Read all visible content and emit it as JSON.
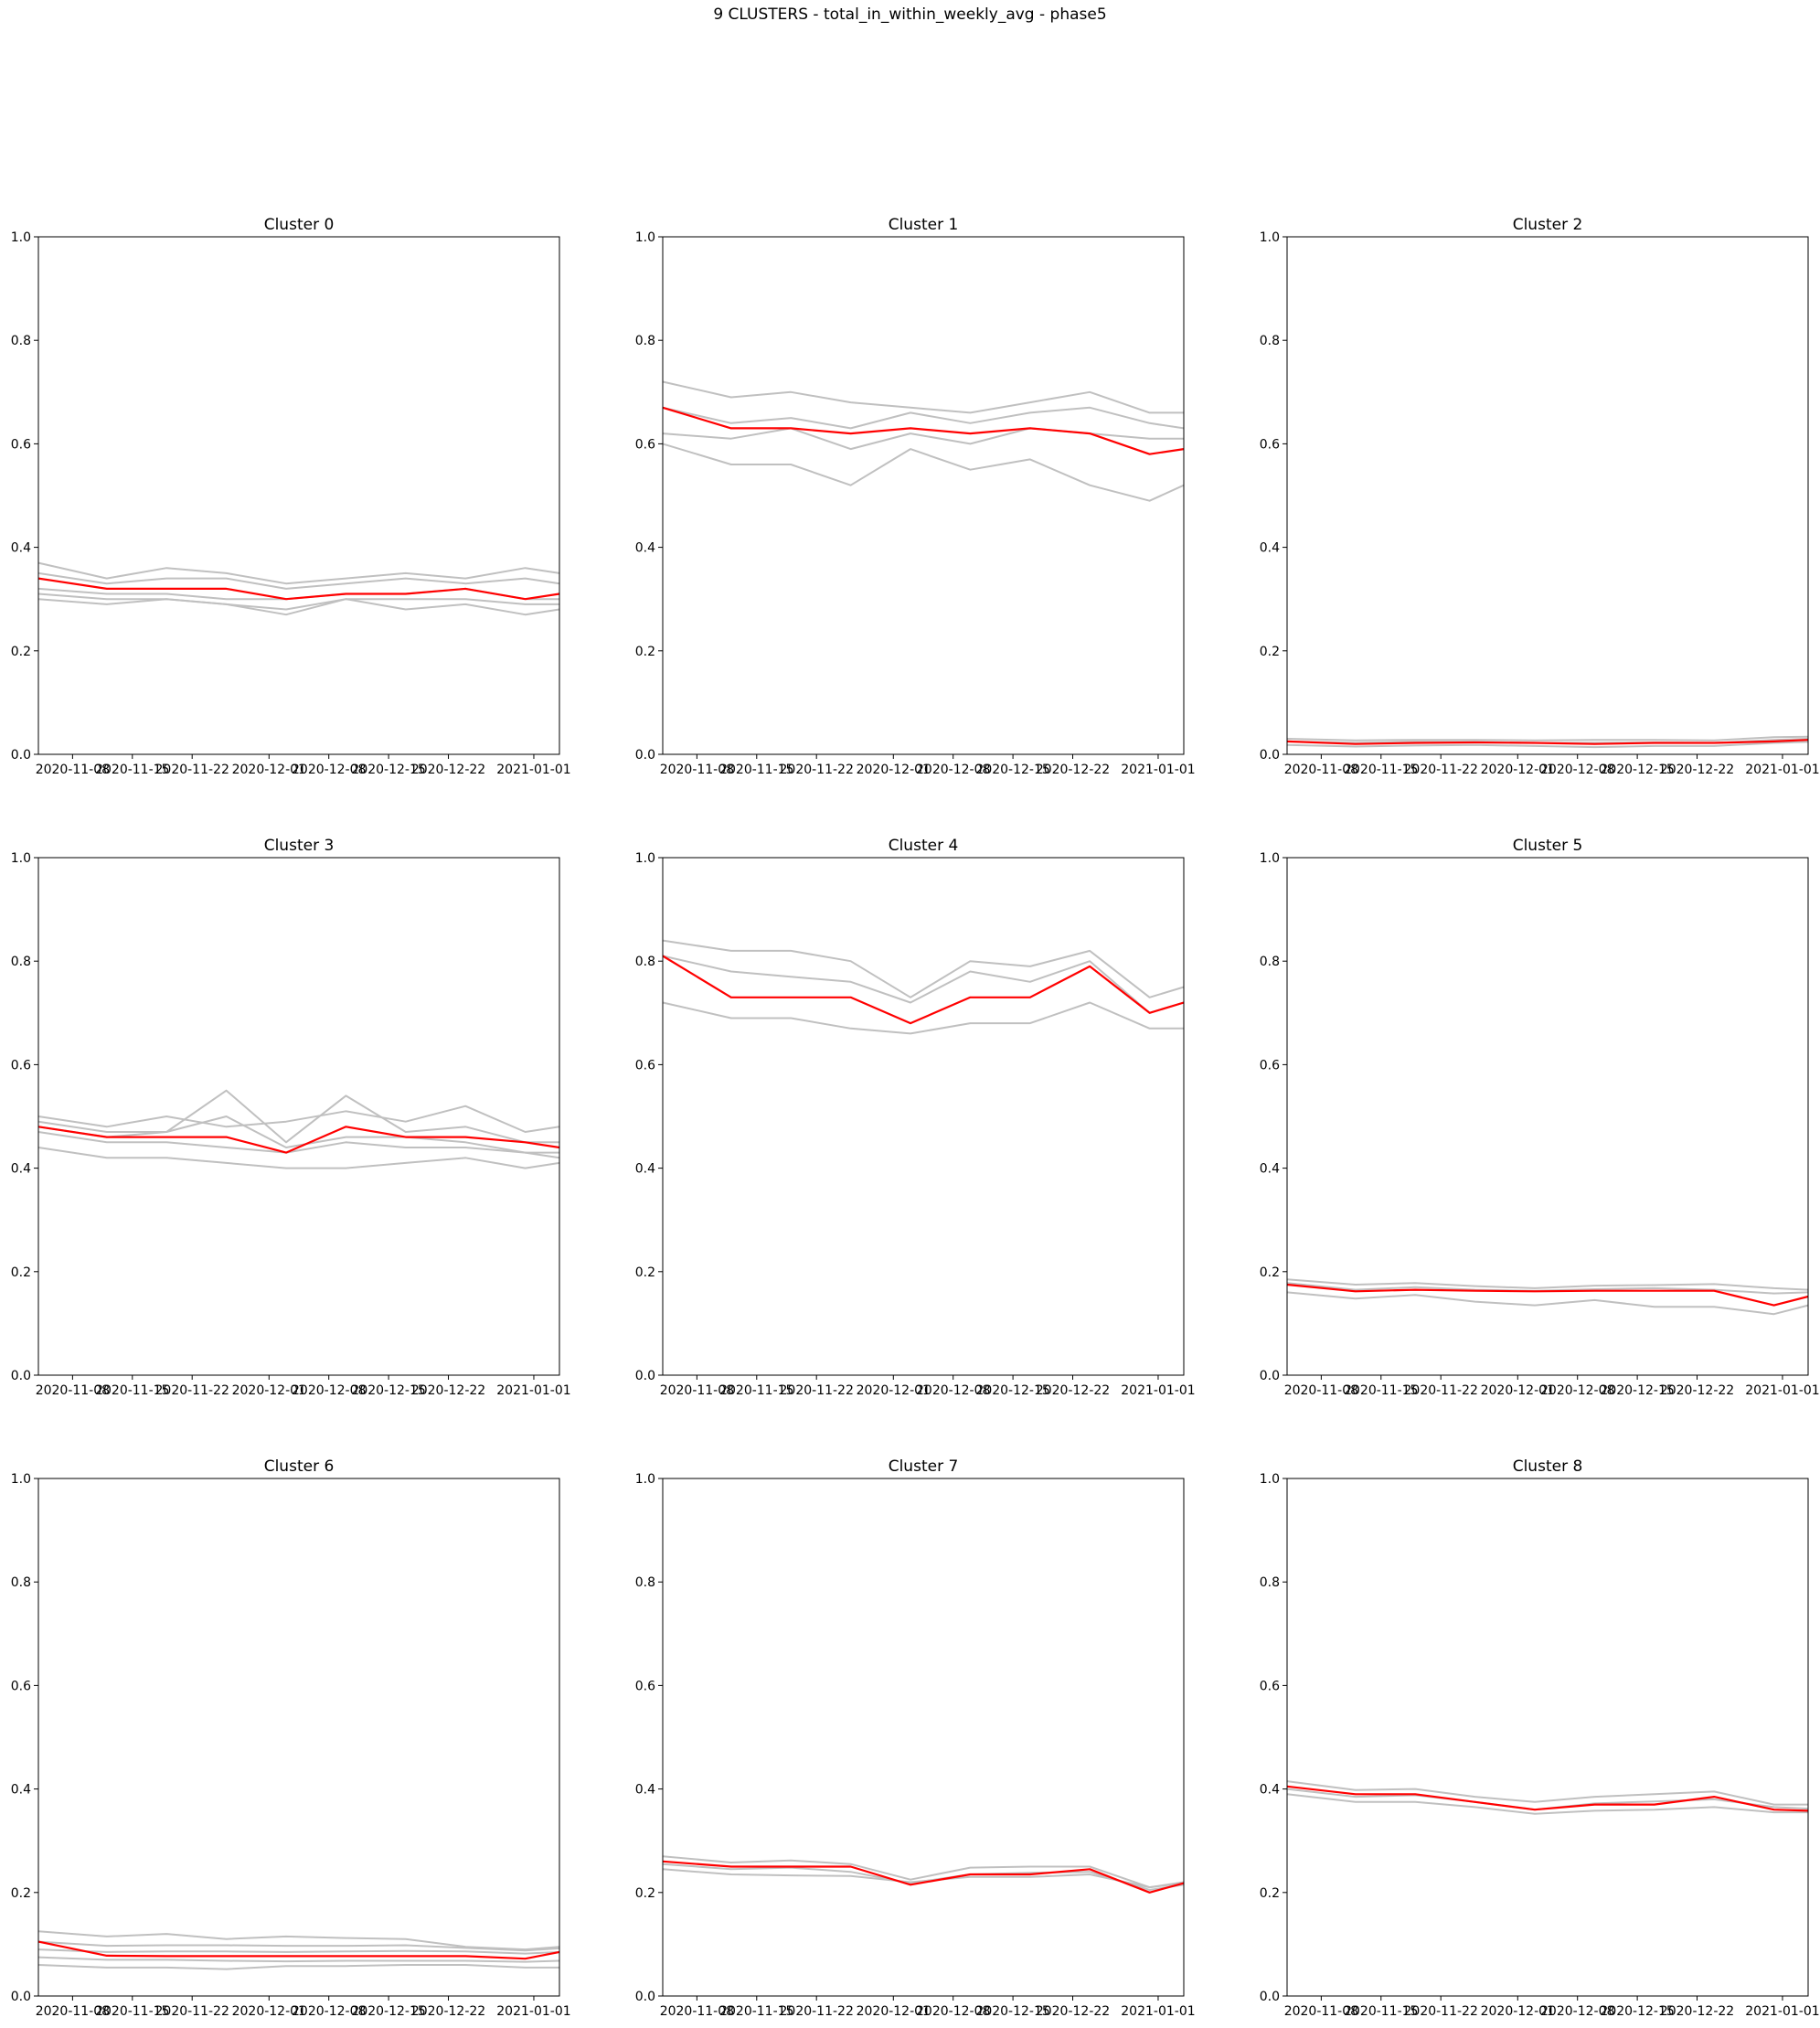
{
  "figure": {
    "title": "9 CLUSTERS - total_in_within_weekly_avg - phase5"
  },
  "colors": {
    "member": "#c0c0c0",
    "centroid": "#ff0000"
  },
  "chart_data": [
    {
      "type": "line",
      "title": "Cluster 0",
      "ylim": [
        0,
        1
      ],
      "xlim": [
        "2020-11-04",
        "2021-01-04"
      ],
      "xticks": [
        "2020-11-08",
        "2020-11-15",
        "2020-11-22",
        "2020-12-01",
        "2020-12-08",
        "2020-12-15",
        "2020-12-22",
        "2021-01-01"
      ],
      "yticks": [
        "0.0",
        "0.2",
        "0.4",
        "0.6",
        "0.8",
        "1.0"
      ],
      "x": [
        "2020-11-04",
        "2020-11-12",
        "2020-11-19",
        "2020-11-26",
        "2020-12-03",
        "2020-12-10",
        "2020-12-17",
        "2020-12-24",
        "2020-12-31",
        "2021-01-04"
      ],
      "series": [
        {
          "role": "member",
          "values": [
            0.37,
            0.34,
            0.36,
            0.35,
            0.33,
            0.34,
            0.35,
            0.34,
            0.36,
            0.35
          ]
        },
        {
          "role": "member",
          "values": [
            0.35,
            0.33,
            0.34,
            0.34,
            0.32,
            0.33,
            0.34,
            0.33,
            0.34,
            0.33
          ]
        },
        {
          "role": "member",
          "values": [
            0.32,
            0.31,
            0.31,
            0.3,
            0.3,
            0.31,
            0.31,
            0.32,
            0.3,
            0.3
          ]
        },
        {
          "role": "member",
          "values": [
            0.31,
            0.3,
            0.3,
            0.29,
            0.28,
            0.3,
            0.3,
            0.3,
            0.29,
            0.29
          ]
        },
        {
          "role": "member",
          "values": [
            0.3,
            0.29,
            0.3,
            0.29,
            0.27,
            0.3,
            0.28,
            0.29,
            0.27,
            0.28
          ]
        },
        {
          "role": "centroid",
          "values": [
            0.34,
            0.32,
            0.32,
            0.32,
            0.3,
            0.31,
            0.31,
            0.32,
            0.3,
            0.31
          ]
        }
      ]
    },
    {
      "type": "line",
      "title": "Cluster 1",
      "ylim": [
        0,
        1
      ],
      "xlim": [
        "2020-11-04",
        "2021-01-04"
      ],
      "xticks": [
        "2020-11-08",
        "2020-11-15",
        "2020-11-22",
        "2020-12-01",
        "2020-12-08",
        "2020-12-15",
        "2020-12-22",
        "2021-01-01"
      ],
      "yticks": [
        "0.0",
        "0.2",
        "0.4",
        "0.6",
        "0.8",
        "1.0"
      ],
      "x": [
        "2020-11-04",
        "2020-11-12",
        "2020-11-19",
        "2020-11-26",
        "2020-12-03",
        "2020-12-10",
        "2020-12-17",
        "2020-12-24",
        "2020-12-31",
        "2021-01-04"
      ],
      "series": [
        {
          "role": "member",
          "values": [
            0.72,
            0.69,
            0.7,
            0.68,
            0.67,
            0.66,
            0.68,
            0.7,
            0.66,
            0.66
          ]
        },
        {
          "role": "member",
          "values": [
            0.67,
            0.64,
            0.65,
            0.63,
            0.66,
            0.64,
            0.66,
            0.67,
            0.64,
            0.63
          ]
        },
        {
          "role": "member",
          "values": [
            0.62,
            0.61,
            0.63,
            0.59,
            0.62,
            0.6,
            0.63,
            0.62,
            0.61,
            0.61
          ]
        },
        {
          "role": "member",
          "values": [
            0.6,
            0.56,
            0.56,
            0.52,
            0.59,
            0.55,
            0.57,
            0.52,
            0.49,
            0.52
          ]
        },
        {
          "role": "centroid",
          "values": [
            0.67,
            0.63,
            0.63,
            0.62,
            0.63,
            0.62,
            0.63,
            0.62,
            0.58,
            0.59
          ]
        }
      ]
    },
    {
      "type": "line",
      "title": "Cluster 2",
      "ylim": [
        0,
        1
      ],
      "xlim": [
        "2020-11-04",
        "2021-01-04"
      ],
      "xticks": [
        "2020-11-08",
        "2020-11-15",
        "2020-11-22",
        "2020-12-01",
        "2020-12-08",
        "2020-12-15",
        "2020-12-22",
        "2021-01-01"
      ],
      "yticks": [
        "0.0",
        "0.2",
        "0.4",
        "0.6",
        "0.8",
        "1.0"
      ],
      "x": [
        "2020-11-04",
        "2020-11-12",
        "2020-11-19",
        "2020-11-26",
        "2020-12-03",
        "2020-12-10",
        "2020-12-17",
        "2020-12-24",
        "2020-12-31",
        "2021-01-04"
      ],
      "series": [
        {
          "role": "member",
          "values": [
            0.03,
            0.027,
            0.028,
            0.028,
            0.027,
            0.028,
            0.028,
            0.027,
            0.033,
            0.034
          ]
        },
        {
          "role": "member",
          "values": [
            0.025,
            0.022,
            0.024,
            0.024,
            0.022,
            0.022,
            0.023,
            0.022,
            0.028,
            0.03
          ]
        },
        {
          "role": "member",
          "values": [
            0.018,
            0.015,
            0.017,
            0.018,
            0.016,
            0.014,
            0.016,
            0.016,
            0.022,
            0.024
          ]
        },
        {
          "role": "centroid",
          "values": [
            0.025,
            0.02,
            0.022,
            0.023,
            0.022,
            0.02,
            0.022,
            0.022,
            0.025,
            0.028
          ]
        }
      ]
    },
    {
      "type": "line",
      "title": "Cluster 3",
      "ylim": [
        0,
        1
      ],
      "xlim": [
        "2020-11-04",
        "2021-01-04"
      ],
      "xticks": [
        "2020-11-08",
        "2020-11-15",
        "2020-11-22",
        "2020-12-01",
        "2020-12-08",
        "2020-12-15",
        "2020-12-22",
        "2021-01-01"
      ],
      "yticks": [
        "0.0",
        "0.2",
        "0.4",
        "0.6",
        "0.8",
        "1.0"
      ],
      "x": [
        "2020-11-04",
        "2020-11-12",
        "2020-11-19",
        "2020-11-26",
        "2020-12-03",
        "2020-12-10",
        "2020-12-17",
        "2020-12-24",
        "2020-12-31",
        "2021-01-04"
      ],
      "series": [
        {
          "role": "member",
          "values": [
            0.5,
            0.48,
            0.5,
            0.48,
            0.49,
            0.51,
            0.49,
            0.52,
            0.47,
            0.48
          ]
        },
        {
          "role": "member",
          "values": [
            0.49,
            0.47,
            0.47,
            0.55,
            0.45,
            0.54,
            0.47,
            0.48,
            0.45,
            0.45
          ]
        },
        {
          "role": "member",
          "values": [
            0.48,
            0.46,
            0.47,
            0.5,
            0.44,
            0.46,
            0.46,
            0.45,
            0.43,
            0.43
          ]
        },
        {
          "role": "member",
          "values": [
            0.47,
            0.45,
            0.45,
            0.44,
            0.43,
            0.45,
            0.44,
            0.44,
            0.43,
            0.42
          ]
        },
        {
          "role": "member",
          "values": [
            0.44,
            0.42,
            0.42,
            0.41,
            0.4,
            0.4,
            0.41,
            0.42,
            0.4,
            0.41
          ]
        },
        {
          "role": "centroid",
          "values": [
            0.48,
            0.46,
            0.46,
            0.46,
            0.43,
            0.48,
            0.46,
            0.46,
            0.45,
            0.44
          ]
        }
      ]
    },
    {
      "type": "line",
      "title": "Cluster 4",
      "ylim": [
        0,
        1
      ],
      "xlim": [
        "2020-11-04",
        "2021-01-04"
      ],
      "xticks": [
        "2020-11-08",
        "2020-11-15",
        "2020-11-22",
        "2020-12-01",
        "2020-12-08",
        "2020-12-15",
        "2020-12-22",
        "2021-01-01"
      ],
      "yticks": [
        "0.0",
        "0.2",
        "0.4",
        "0.6",
        "0.8",
        "1.0"
      ],
      "x": [
        "2020-11-04",
        "2020-11-12",
        "2020-11-19",
        "2020-11-26",
        "2020-12-03",
        "2020-12-10",
        "2020-12-17",
        "2020-12-24",
        "2020-12-31",
        "2021-01-04"
      ],
      "series": [
        {
          "role": "member",
          "values": [
            0.84,
            0.82,
            0.82,
            0.8,
            0.73,
            0.8,
            0.79,
            0.82,
            0.73,
            0.75
          ]
        },
        {
          "role": "member",
          "values": [
            0.81,
            0.78,
            0.77,
            0.76,
            0.72,
            0.78,
            0.76,
            0.8,
            0.7,
            0.72
          ]
        },
        {
          "role": "member",
          "values": [
            0.72,
            0.69,
            0.69,
            0.67,
            0.66,
            0.68,
            0.68,
            0.72,
            0.67,
            0.67
          ]
        },
        {
          "role": "centroid",
          "values": [
            0.81,
            0.73,
            0.73,
            0.73,
            0.68,
            0.73,
            0.73,
            0.79,
            0.7,
            0.72
          ]
        }
      ]
    },
    {
      "type": "line",
      "title": "Cluster 5",
      "ylim": [
        0,
        1
      ],
      "xlim": [
        "2020-11-04",
        "2021-01-04"
      ],
      "xticks": [
        "2020-11-08",
        "2020-11-15",
        "2020-11-22",
        "2020-12-01",
        "2020-12-08",
        "2020-12-15",
        "2020-12-22",
        "2021-01-01"
      ],
      "yticks": [
        "0.0",
        "0.2",
        "0.4",
        "0.6",
        "0.8",
        "1.0"
      ],
      "x": [
        "2020-11-04",
        "2020-11-12",
        "2020-11-19",
        "2020-11-26",
        "2020-12-03",
        "2020-12-10",
        "2020-12-17",
        "2020-12-24",
        "2020-12-31",
        "2021-01-04"
      ],
      "series": [
        {
          "role": "member",
          "values": [
            0.185,
            0.175,
            0.178,
            0.172,
            0.168,
            0.173,
            0.174,
            0.176,
            0.168,
            0.165
          ]
        },
        {
          "role": "member",
          "values": [
            0.178,
            0.165,
            0.17,
            0.165,
            0.163,
            0.166,
            0.168,
            0.165,
            0.158,
            0.16
          ]
        },
        {
          "role": "member",
          "values": [
            0.16,
            0.148,
            0.155,
            0.142,
            0.135,
            0.145,
            0.132,
            0.132,
            0.118,
            0.135
          ]
        },
        {
          "role": "centroid",
          "values": [
            0.175,
            0.162,
            0.165,
            0.163,
            0.162,
            0.163,
            0.163,
            0.163,
            0.135,
            0.152
          ]
        }
      ]
    },
    {
      "type": "line",
      "title": "Cluster 6",
      "ylim": [
        0,
        1
      ],
      "xlim": [
        "2020-11-04",
        "2021-01-04"
      ],
      "xticks": [
        "2020-11-08",
        "2020-11-15",
        "2020-11-22",
        "2020-12-01",
        "2020-12-08",
        "2020-12-15",
        "2020-12-22",
        "2021-01-01"
      ],
      "yticks": [
        "0.0",
        "0.2",
        "0.4",
        "0.6",
        "0.8",
        "1.0"
      ],
      "x": [
        "2020-11-04",
        "2020-11-12",
        "2020-11-19",
        "2020-11-26",
        "2020-12-03",
        "2020-12-10",
        "2020-12-17",
        "2020-12-24",
        "2020-12-31",
        "2021-01-04"
      ],
      "series": [
        {
          "role": "member",
          "values": [
            0.125,
            0.115,
            0.12,
            0.11,
            0.115,
            0.112,
            0.11,
            0.095,
            0.09,
            0.095
          ]
        },
        {
          "role": "member",
          "values": [
            0.105,
            0.097,
            0.098,
            0.098,
            0.097,
            0.097,
            0.098,
            0.093,
            0.088,
            0.092
          ]
        },
        {
          "role": "member",
          "values": [
            0.09,
            0.085,
            0.086,
            0.086,
            0.085,
            0.086,
            0.087,
            0.086,
            0.082,
            0.085
          ]
        },
        {
          "role": "member",
          "values": [
            0.075,
            0.07,
            0.07,
            0.068,
            0.067,
            0.068,
            0.068,
            0.068,
            0.066,
            0.068
          ]
        },
        {
          "role": "member",
          "values": [
            0.06,
            0.055,
            0.055,
            0.052,
            0.058,
            0.058,
            0.06,
            0.06,
            0.055,
            0.055
          ]
        },
        {
          "role": "centroid",
          "values": [
            0.105,
            0.078,
            0.077,
            0.077,
            0.077,
            0.077,
            0.077,
            0.077,
            0.072,
            0.085
          ]
        }
      ]
    },
    {
      "type": "line",
      "title": "Cluster 7",
      "ylim": [
        0,
        1
      ],
      "xlim": [
        "2020-11-04",
        "2021-01-04"
      ],
      "xticks": [
        "2020-11-08",
        "2020-11-15",
        "2020-11-22",
        "2020-12-01",
        "2020-12-08",
        "2020-12-15",
        "2020-12-22",
        "2021-01-01"
      ],
      "yticks": [
        "0.0",
        "0.2",
        "0.4",
        "0.6",
        "0.8",
        "1.0"
      ],
      "x": [
        "2020-11-04",
        "2020-11-12",
        "2020-11-19",
        "2020-11-26",
        "2020-12-03",
        "2020-12-10",
        "2020-12-17",
        "2020-12-24",
        "2020-12-31",
        "2021-01-04"
      ],
      "series": [
        {
          "role": "member",
          "values": [
            0.27,
            0.258,
            0.262,
            0.255,
            0.225,
            0.248,
            0.25,
            0.25,
            0.21,
            0.22
          ]
        },
        {
          "role": "member",
          "values": [
            0.255,
            0.245,
            0.248,
            0.24,
            0.218,
            0.235,
            0.238,
            0.24,
            0.205,
            0.215
          ]
        },
        {
          "role": "member",
          "values": [
            0.245,
            0.235,
            0.233,
            0.232,
            0.22,
            0.23,
            0.23,
            0.235,
            0.21,
            0.218
          ]
        },
        {
          "role": "centroid",
          "values": [
            0.26,
            0.25,
            0.25,
            0.25,
            0.215,
            0.235,
            0.235,
            0.245,
            0.2,
            0.218
          ]
        }
      ]
    },
    {
      "type": "line",
      "title": "Cluster 8",
      "ylim": [
        0,
        1
      ],
      "xlim": [
        "2020-11-04",
        "2021-01-04"
      ],
      "xticks": [
        "2020-11-08",
        "2020-11-15",
        "2020-11-22",
        "2020-12-01",
        "2020-12-08",
        "2020-12-15",
        "2020-12-22",
        "2021-01-01"
      ],
      "yticks": [
        "0.0",
        "0.2",
        "0.4",
        "0.6",
        "0.8",
        "1.0"
      ],
      "x": [
        "2020-11-04",
        "2020-11-12",
        "2020-11-19",
        "2020-11-26",
        "2020-12-03",
        "2020-12-10",
        "2020-12-17",
        "2020-12-24",
        "2020-12-31",
        "2021-01-04"
      ],
      "series": [
        {
          "role": "member",
          "values": [
            0.415,
            0.398,
            0.4,
            0.385,
            0.375,
            0.385,
            0.39,
            0.395,
            0.37,
            0.37
          ]
        },
        {
          "role": "member",
          "values": [
            0.4,
            0.385,
            0.388,
            0.375,
            0.36,
            0.372,
            0.376,
            0.38,
            0.365,
            0.362
          ]
        },
        {
          "role": "member",
          "values": [
            0.39,
            0.375,
            0.375,
            0.365,
            0.352,
            0.358,
            0.36,
            0.365,
            0.355,
            0.355
          ]
        },
        {
          "role": "centroid",
          "values": [
            0.405,
            0.39,
            0.39,
            0.375,
            0.36,
            0.37,
            0.37,
            0.385,
            0.36,
            0.358
          ]
        }
      ]
    }
  ]
}
